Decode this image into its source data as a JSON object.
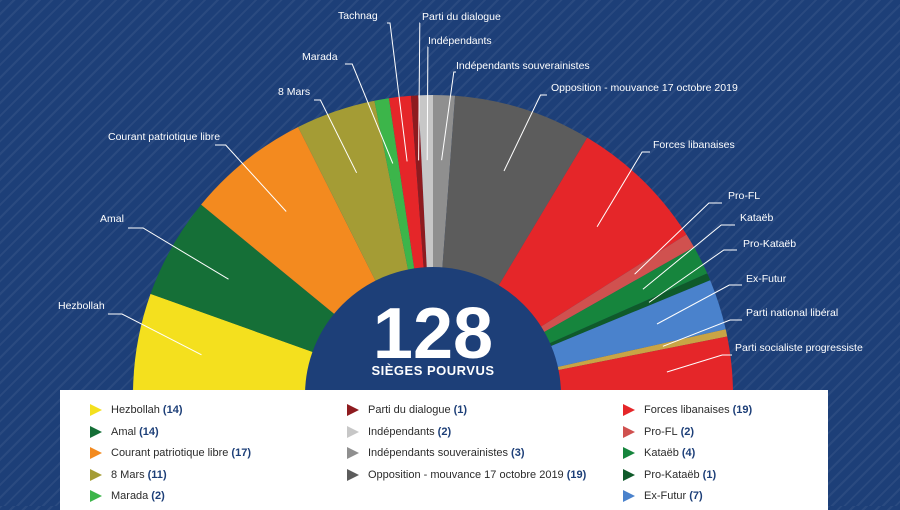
{
  "center": {
    "total": "128",
    "subtitle": "SIÈGES POURVUS"
  },
  "chart_data": {
    "type": "pie",
    "subtype": "semicircle",
    "total": 128,
    "series": [
      {
        "name": "Hezbollah",
        "values": [
          14
        ],
        "color": "#f4e01e"
      },
      {
        "name": "Amal",
        "values": [
          14
        ],
        "color": "#156f37"
      },
      {
        "name": "Courant patriotique libre",
        "values": [
          17
        ],
        "color": "#f38a1f"
      },
      {
        "name": "8 Mars",
        "values": [
          11
        ],
        "color": "#a49c35"
      },
      {
        "name": "Marada",
        "values": [
          2
        ],
        "color": "#3cb54a"
      },
      {
        "name": "Tachnag",
        "values": [
          3
        ],
        "color": "#e52629"
      },
      {
        "name": "Parti du dialogue",
        "values": [
          1
        ],
        "color": "#8e1b1f"
      },
      {
        "name": "Indépendants",
        "values": [
          2
        ],
        "color": "#c7c7c7"
      },
      {
        "name": "Indépendants souverainistes",
        "values": [
          3
        ],
        "color": "#8f8f8f"
      },
      {
        "name": "Opposition - mouvance 17 octobre 2019",
        "values": [
          19
        ],
        "color": "#5c5c5c"
      },
      {
        "name": "Forces libanaises",
        "values": [
          19
        ],
        "color": "#e52629"
      },
      {
        "name": "Pro-FL",
        "values": [
          2
        ],
        "color": "#d0514f"
      },
      {
        "name": "Kataëb",
        "values": [
          4
        ],
        "color": "#16853d"
      },
      {
        "name": "Pro-Kataëb",
        "values": [
          1
        ],
        "color": "#0f5a2a"
      },
      {
        "name": "Ex-Futur",
        "values": [
          7
        ],
        "color": "#4a82cc"
      },
      {
        "name": "Parti national libéral",
        "values": [
          1
        ],
        "color": "#c9a445"
      },
      {
        "name": "Parti socialiste progressiste",
        "values": [
          8
        ],
        "color": "#e52629"
      }
    ]
  },
  "legend": {
    "columns": [
      [
        {
          "label": "Hezbollah",
          "count": "14",
          "color": "#f4e01e"
        },
        {
          "label": "Amal",
          "count": "14",
          "color": "#156f37"
        },
        {
          "label": "Courant patriotique libre",
          "count": "17",
          "color": "#f38a1f"
        },
        {
          "label": "8 Mars",
          "count": "11",
          "color": "#a49c35"
        },
        {
          "label": "Marada",
          "count": "2",
          "color": "#3cb54a"
        }
      ],
      [
        {
          "label": "Parti du dialogue",
          "count": "1",
          "color": "#8e1b1f"
        },
        {
          "label": "Indépendants",
          "count": "2",
          "color": "#c7c7c7"
        },
        {
          "label": "Indépendants souverainistes",
          "count": "3",
          "color": "#8f8f8f"
        },
        {
          "label": "Opposition - mouvance 17 octobre 2019",
          "count": "19",
          "color": "#5c5c5c"
        }
      ],
      [
        {
          "label": "Forces libanaises",
          "count": "19",
          "color": "#e52629"
        },
        {
          "label": "Pro-FL",
          "count": "2",
          "color": "#d0514f"
        },
        {
          "label": "Kataëb",
          "count": "4",
          "color": "#16853d"
        },
        {
          "label": "Pro-Kataëb",
          "count": "1",
          "color": "#0f5a2a"
        },
        {
          "label": "Ex-Futur",
          "count": "7",
          "color": "#4a82cc"
        }
      ]
    ]
  }
}
